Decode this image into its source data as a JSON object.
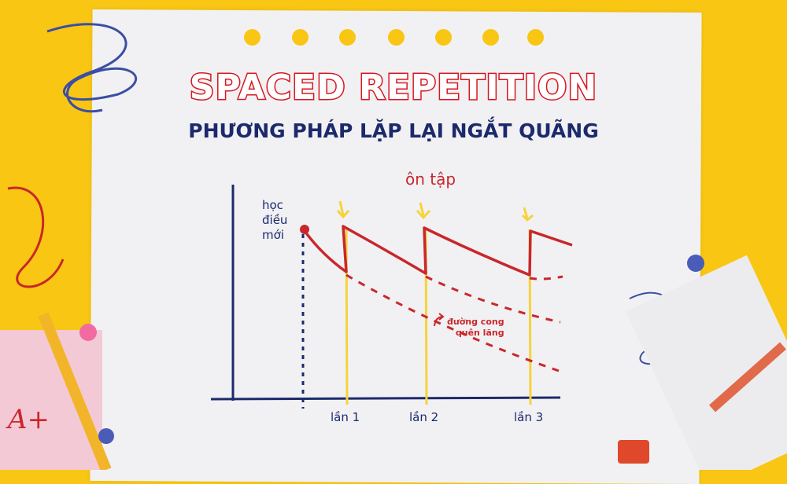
{
  "header": {
    "title": "SPACED REPETITION",
    "subtitle": "PHƯƠNG PHÁP LẶP LẠI NGẮT QUÃNG"
  },
  "diagram": {
    "review_label": "ôn tập",
    "learn_label": [
      "học",
      "điều",
      "mới"
    ],
    "forgetting_curve_label": [
      "đường cong",
      "quên lãng"
    ],
    "review_ticks": [
      "lần 1",
      "lần 2",
      "lần 3"
    ]
  },
  "decor": {
    "grade_label": "A+"
  },
  "colors": {
    "background": "#f8c613",
    "title_red": "#d7161f",
    "navy": "#1c2a6b",
    "curve_red": "#c9272b",
    "review_yellow": "#f6d33a"
  }
}
